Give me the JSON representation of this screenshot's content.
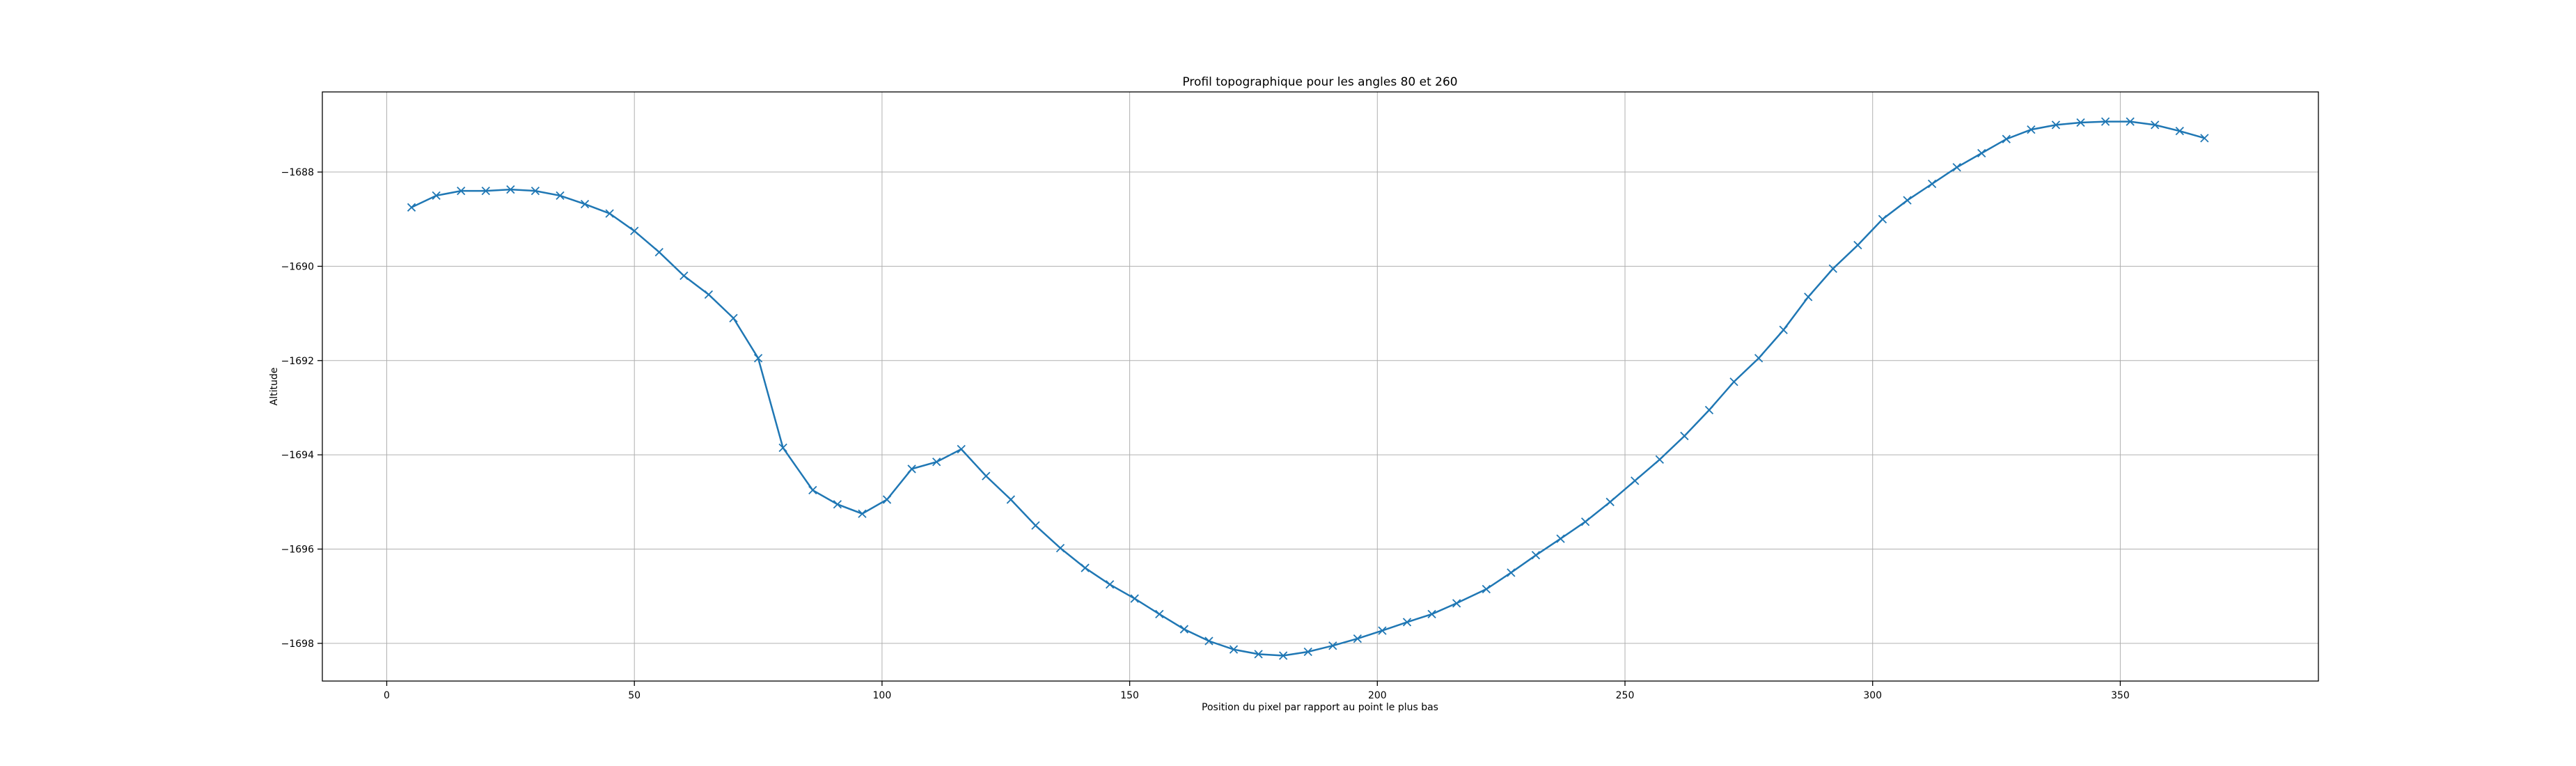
{
  "chart_data": {
    "type": "line",
    "title": "Profil topographique pour les angles 80 et 260",
    "xlabel": "Position du pixel par rapport au point le plus bas",
    "ylabel": "Altitude",
    "xlim": [
      -13,
      390
    ],
    "ylim": [
      -1698.8,
      -1686.3
    ],
    "xticks": [
      0,
      50,
      100,
      150,
      200,
      250,
      300,
      350
    ],
    "yticks": [
      -1698,
      -1696,
      -1694,
      -1692,
      -1690,
      -1688
    ],
    "grid": true,
    "line_color": "#1f77b4",
    "marker": "x",
    "x": [
      5,
      10,
      15,
      20,
      25,
      30,
      35,
      40,
      45,
      50,
      55,
      60,
      65,
      70,
      75,
      80,
      86,
      91,
      96,
      101,
      106,
      111,
      116,
      121,
      126,
      131,
      136,
      141,
      146,
      151,
      156,
      161,
      166,
      171,
      176,
      181,
      186,
      191,
      196,
      201,
      206,
      211,
      216,
      222,
      227,
      232,
      237,
      242,
      247,
      252,
      257,
      262,
      267,
      272,
      277,
      282,
      287,
      292,
      297,
      302,
      307,
      312,
      317,
      322,
      327,
      332,
      337,
      342,
      347,
      352,
      357,
      362,
      367
    ],
    "y": [
      -1688.75,
      -1688.5,
      -1688.4,
      -1688.4,
      -1688.37,
      -1688.4,
      -1688.5,
      -1688.68,
      -1688.88,
      -1689.25,
      -1689.7,
      -1690.2,
      -1690.6,
      -1691.1,
      -1691.95,
      -1693.85,
      -1694.75,
      -1695.05,
      -1695.25,
      -1694.95,
      -1694.3,
      -1694.15,
      -1693.88,
      -1694.45,
      -1694.95,
      -1695.5,
      -1695.98,
      -1696.4,
      -1696.75,
      -1697.05,
      -1697.38,
      -1697.7,
      -1697.95,
      -1698.13,
      -1698.23,
      -1698.26,
      -1698.18,
      -1698.05,
      -1697.9,
      -1697.73,
      -1697.55,
      -1697.38,
      -1697.15,
      -1696.85,
      -1696.5,
      -1696.13,
      -1695.78,
      -1695.42,
      -1695.0,
      -1694.55,
      -1694.1,
      -1693.6,
      -1693.05,
      -1692.45,
      -1691.95,
      -1691.35,
      -1690.65,
      -1690.05,
      -1689.55,
      -1689.0,
      -1688.6,
      -1688.25,
      -1687.9,
      -1687.6,
      -1687.3,
      -1687.1,
      -1687.0,
      -1686.95,
      -1686.93,
      -1686.93,
      -1687.0,
      -1687.13,
      -1687.28
    ]
  }
}
